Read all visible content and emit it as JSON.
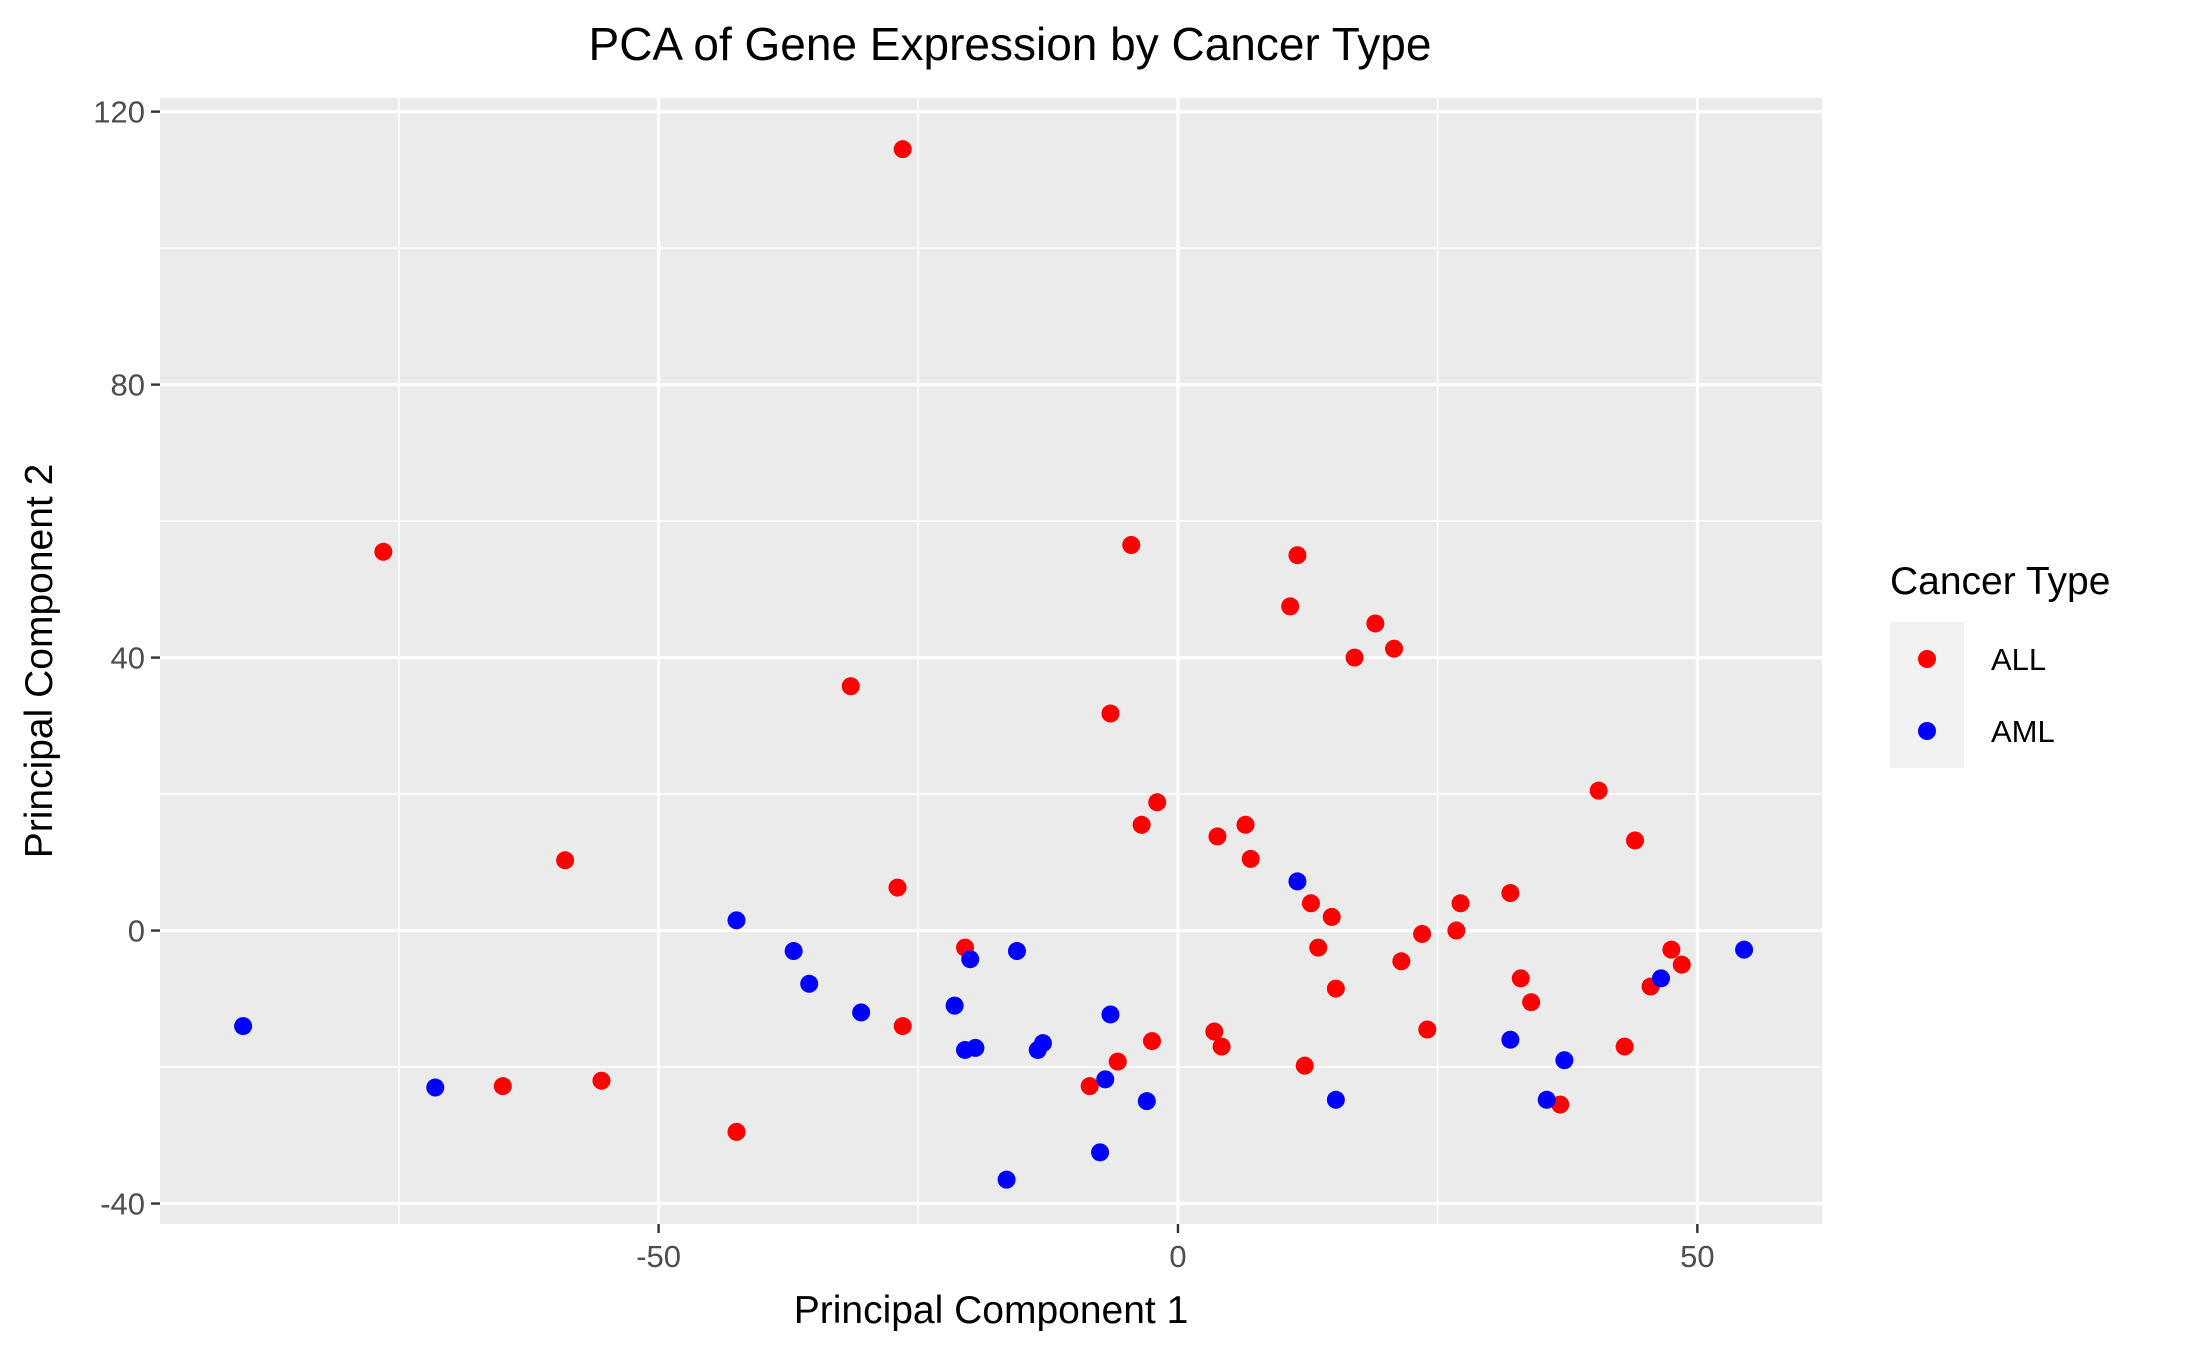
{
  "chart_data": {
    "type": "scatter",
    "title": "PCA of Gene Expression by Cancer Type",
    "xlabel": "Principal Component 1",
    "ylabel": "Principal Component 2",
    "xlim": [
      -98,
      62
    ],
    "ylim": [
      -43,
      122
    ],
    "xticks": [
      -50,
      0,
      50
    ],
    "xtick_labels": [
      "-50",
      "0",
      "50"
    ],
    "yticks": [
      -40,
      0,
      40,
      80,
      120
    ],
    "ytick_labels": [
      "-40",
      "0",
      "40",
      "80",
      "120"
    ],
    "grid": true,
    "background": "#ebebeb",
    "legend": {
      "title": "Cancer Type",
      "position": "right"
    },
    "series": [
      {
        "name": "ALL",
        "color": "#ff0000",
        "points": [
          [
            -26.5,
            114.5
          ],
          [
            -76.5,
            55.5
          ],
          [
            -4.5,
            56.5
          ],
          [
            11.5,
            55.0
          ],
          [
            10.8,
            47.5
          ],
          [
            19.0,
            45.0
          ],
          [
            17.0,
            40.0
          ],
          [
            20.8,
            41.3
          ],
          [
            -31.5,
            35.8
          ],
          [
            -6.5,
            31.8
          ],
          [
            40.5,
            20.5
          ],
          [
            -2.0,
            18.8
          ],
          [
            6.5,
            15.5
          ],
          [
            -3.5,
            15.5
          ],
          [
            3.8,
            13.8
          ],
          [
            44.0,
            13.2
          ],
          [
            7.0,
            10.5
          ],
          [
            -59.0,
            10.3
          ],
          [
            -27.0,
            6.3
          ],
          [
            12.8,
            4.0
          ],
          [
            27.2,
            4.0
          ],
          [
            32.0,
            5.5
          ],
          [
            14.8,
            2.0
          ],
          [
            23.5,
            -0.5
          ],
          [
            26.8,
            0.0
          ],
          [
            -20.5,
            -2.5
          ],
          [
            13.5,
            -2.5
          ],
          [
            47.5,
            -2.8
          ],
          [
            21.5,
            -4.5
          ],
          [
            48.5,
            -5.0
          ],
          [
            33.0,
            -7.0
          ],
          [
            45.5,
            -8.2
          ],
          [
            15.2,
            -8.5
          ],
          [
            34.0,
            -10.5
          ],
          [
            -26.5,
            -14.0
          ],
          [
            3.5,
            -14.8
          ],
          [
            24.0,
            -14.5
          ],
          [
            -2.5,
            -16.2
          ],
          [
            4.2,
            -17.0
          ],
          [
            43.0,
            -17.0
          ],
          [
            -5.8,
            -19.2
          ],
          [
            12.2,
            -19.8
          ],
          [
            -8.5,
            -22.8
          ],
          [
            -65.0,
            -22.8
          ],
          [
            -55.5,
            -22.0
          ],
          [
            36.8,
            -25.5
          ],
          [
            -42.5,
            -29.5
          ]
        ]
      },
      {
        "name": "AML",
        "color": "#0000ff",
        "points": [
          [
            54.5,
            -2.8
          ],
          [
            46.5,
            -7.0
          ],
          [
            11.5,
            7.2
          ],
          [
            -42.5,
            1.5
          ],
          [
            -37.0,
            -3.0
          ],
          [
            -15.5,
            -3.0
          ],
          [
            -20.0,
            -4.2
          ],
          [
            -35.5,
            -7.8
          ],
          [
            -30.5,
            -12.0
          ],
          [
            -21.5,
            -11.0
          ],
          [
            -6.5,
            -12.3
          ],
          [
            -20.5,
            -17.5
          ],
          [
            -19.5,
            -17.2
          ],
          [
            -13.5,
            -17.5
          ],
          [
            -13.0,
            -16.5
          ],
          [
            32.0,
            -16.0
          ],
          [
            37.2,
            -19.0
          ],
          [
            -90.0,
            -14.0
          ],
          [
            -71.5,
            -23.0
          ],
          [
            -7.0,
            -21.8
          ],
          [
            -3.0,
            -25.0
          ],
          [
            15.2,
            -24.8
          ],
          [
            35.5,
            -24.8
          ],
          [
            -7.5,
            -32.5
          ],
          [
            -16.5,
            -36.5
          ]
        ]
      }
    ]
  }
}
